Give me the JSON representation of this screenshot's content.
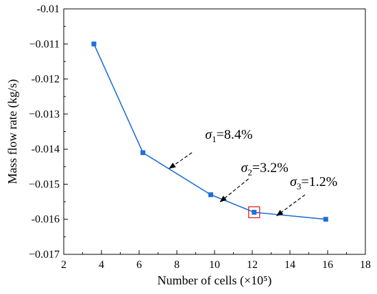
{
  "chart_data": {
    "type": "line",
    "x": [
      3.6,
      6.2,
      9.8,
      12.1,
      15.9
    ],
    "series": [
      {
        "values": [
          -0.011,
          -0.0141,
          -0.0153,
          -0.0158,
          -0.016
        ],
        "color": "#1f6fd6"
      }
    ],
    "xlabel": "Number of cells (×10⁵)",
    "ylabel": "Mass flow rate (kg/s)",
    "xlim": [
      2,
      18
    ],
    "ylim": [
      -0.017,
      -0.01
    ],
    "xticks": [
      2,
      4,
      6,
      8,
      10,
      12,
      14,
      16,
      18
    ],
    "xtick_labels": [
      "2",
      "4",
      "6",
      "8",
      "10",
      "12",
      "14",
      "16",
      "18"
    ],
    "yticks": [
      -0.017,
      -0.016,
      -0.015,
      -0.014,
      -0.013,
      -0.012,
      -0.011,
      -0.01
    ],
    "ytick_labels": [
      "−0.017",
      "-0.016",
      "−0.015",
      "-0.014",
      "−0.013",
      "-0.012",
      "−0.011",
      "-0.01"
    ],
    "highlight_color": "#e02020",
    "highlighted_point": {
      "x": 12.1,
      "y": -0.0158
    },
    "grid": false,
    "legend": "none",
    "annotations": [
      {
        "symbol": "σ",
        "subscript": "1",
        "text": "=8.4%",
        "label_x": 9.5,
        "label_y": -0.0137,
        "arrow_from": [
          8.8,
          -0.0141
        ],
        "arrow_to": [
          7.6,
          -0.01455
        ]
      },
      {
        "symbol": "σ",
        "subscript": "2",
        "text": "=3.2%",
        "label_x": 11.4,
        "label_y": -0.01465,
        "arrow_from": [
          11.8,
          -0.01485
        ],
        "arrow_to": [
          10.3,
          -0.0155
        ]
      },
      {
        "symbol": "σ",
        "subscript": "3",
        "text": "=1.2%",
        "label_x": 14.0,
        "label_y": -0.01505,
        "arrow_from": [
          14.8,
          -0.0153
        ],
        "arrow_to": [
          13.3,
          -0.0159
        ]
      }
    ]
  }
}
